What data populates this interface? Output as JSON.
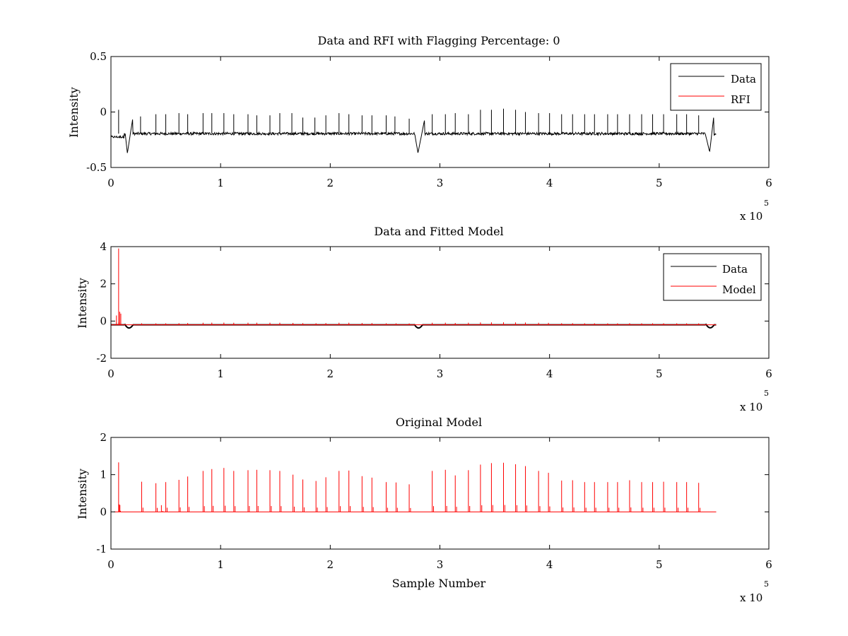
{
  "chart_data": [
    {
      "type": "line",
      "title": "Data and RFI with Flagging Percentage: 0",
      "xlabel": "",
      "ylabel": "Intensity",
      "xlim": [
        0,
        6
      ],
      "ylim": [
        -0.5,
        0.5
      ],
      "xticks": [
        "0",
        "1",
        "2",
        "3",
        "4",
        "5",
        "6"
      ],
      "yticks": [
        "-0.5",
        "0",
        "0.5"
      ],
      "x_multiplier": {
        "base": "x 10",
        "exponent": "5"
      },
      "legend": {
        "position": "top-right",
        "entries": [
          {
            "label": "Data",
            "color": "#000000"
          },
          {
            "label": "RFI",
            "color": "#ff0000"
          }
        ]
      },
      "series": [
        {
          "name": "Data",
          "color": "#000000",
          "x_range": [
            0,
            5.52
          ],
          "baseline": -0.195,
          "noise": 0.012,
          "spikes": [
            {
              "x": 0.07,
              "h": 0.02
            },
            {
              "x": 0.27,
              "h": -0.04
            },
            {
              "x": 0.41,
              "h": -0.02
            },
            {
              "x": 0.5,
              "h": -0.02
            },
            {
              "x": 0.62,
              "h": -0.01
            },
            {
              "x": 0.7,
              "h": -0.02
            },
            {
              "x": 0.84,
              "h": -0.01
            },
            {
              "x": 0.92,
              "h": -0.01
            },
            {
              "x": 1.03,
              "h": -0.01
            },
            {
              "x": 1.12,
              "h": -0.02
            },
            {
              "x": 1.25,
              "h": -0.02
            },
            {
              "x": 1.33,
              "h": -0.03
            },
            {
              "x": 1.45,
              "h": -0.03
            },
            {
              "x": 1.54,
              "h": -0.01
            },
            {
              "x": 1.65,
              "h": -0.01
            },
            {
              "x": 1.75,
              "h": -0.05
            },
            {
              "x": 1.86,
              "h": -0.05
            },
            {
              "x": 1.96,
              "h": -0.03
            },
            {
              "x": 2.08,
              "h": -0.01
            },
            {
              "x": 2.17,
              "h": -0.02
            },
            {
              "x": 2.29,
              "h": -0.03
            },
            {
              "x": 2.38,
              "h": -0.03
            },
            {
              "x": 2.51,
              "h": -0.03
            },
            {
              "x": 2.59,
              "h": -0.04
            },
            {
              "x": 2.72,
              "h": -0.06
            },
            {
              "x": 2.93,
              "h": -0.02
            },
            {
              "x": 3.05,
              "h": -0.02
            },
            {
              "x": 3.14,
              "h": -0.01
            },
            {
              "x": 3.26,
              "h": -0.02
            },
            {
              "x": 3.37,
              "h": 0.02
            },
            {
              "x": 3.47,
              "h": 0.02
            },
            {
              "x": 3.58,
              "h": 0.03
            },
            {
              "x": 3.69,
              "h": 0.02
            },
            {
              "x": 3.78,
              "h": 0.0
            },
            {
              "x": 3.9,
              "h": -0.01
            },
            {
              "x": 4.0,
              "h": -0.01
            },
            {
              "x": 4.11,
              "h": -0.02
            },
            {
              "x": 4.21,
              "h": -0.02
            },
            {
              "x": 4.32,
              "h": -0.02
            },
            {
              "x": 4.41,
              "h": -0.02
            },
            {
              "x": 4.53,
              "h": -0.02
            },
            {
              "x": 4.62,
              "h": -0.02
            },
            {
              "x": 4.73,
              "h": -0.02
            },
            {
              "x": 4.84,
              "h": -0.02
            },
            {
              "x": 4.94,
              "h": -0.02
            },
            {
              "x": 5.04,
              "h": -0.02
            },
            {
              "x": 5.16,
              "h": -0.02
            },
            {
              "x": 5.25,
              "h": -0.02
            },
            {
              "x": 5.36,
              "h": -0.03
            }
          ],
          "dips": [
            {
              "start": 0.13,
              "min": 0.15,
              "end": 0.2,
              "depth": -0.37,
              "rise_to": -0.05
            },
            {
              "start": 2.77,
              "min": 2.8,
              "end": 2.86,
              "depth": -0.37,
              "rise_to": -0.07
            },
            {
              "start": 5.42,
              "min": 5.46,
              "end": 5.5,
              "depth": -0.36,
              "rise_to": -0.02
            }
          ]
        },
        {
          "name": "RFI",
          "color": "#ff0000",
          "values": []
        }
      ]
    },
    {
      "type": "line",
      "title": "Data and Fitted Model",
      "xlabel": "",
      "ylabel": "Intensity",
      "xlim": [
        0,
        6
      ],
      "ylim": [
        -2,
        4
      ],
      "xticks": [
        "0",
        "1",
        "2",
        "3",
        "4",
        "5",
        "6"
      ],
      "yticks": [
        "-2",
        "0",
        "2",
        "4"
      ],
      "x_multiplier": {
        "base": "x 10",
        "exponent": "5"
      },
      "legend": {
        "position": "top-right",
        "entries": [
          {
            "label": "Data",
            "color": "#000000"
          },
          {
            "label": "Model",
            "color": "#ff0000"
          }
        ]
      },
      "series": [
        {
          "name": "Data",
          "color": "#000000",
          "x_range": [
            0,
            5.52
          ],
          "baseline": -0.2,
          "dips": [
            {
              "x": 0.16,
              "depth": -0.37
            },
            {
              "x": 2.8,
              "depth": -0.37
            },
            {
              "x": 5.46,
              "depth": -0.36
            }
          ]
        },
        {
          "name": "Model",
          "color": "#ff0000",
          "x_range": [
            0,
            5.52
          ],
          "baseline": -0.2,
          "peaks": [
            {
              "x": 0.05,
              "h": 0.3
            },
            {
              "x": 0.07,
              "h": 3.9
            },
            {
              "x": 0.08,
              "h": 0.5
            },
            {
              "x": 0.09,
              "h": 0.4
            }
          ]
        }
      ]
    },
    {
      "type": "line",
      "title": "Original Model",
      "xlabel": "Sample Number",
      "ylabel": "Intensity",
      "xlim": [
        0,
        6
      ],
      "ylim": [
        -1,
        2
      ],
      "xticks": [
        "0",
        "1",
        "2",
        "3",
        "4",
        "5",
        "6"
      ],
      "yticks": [
        "-1",
        "0",
        "1",
        "2"
      ],
      "x_multiplier": {
        "base": "x 10",
        "exponent": "5"
      },
      "series": [
        {
          "name": "Model",
          "color": "#ff0000",
          "x_range": [
            0.03,
            5.52
          ],
          "baseline": 0,
          "peaks": [
            {
              "x": 0.07,
              "h": 1.33
            },
            {
              "x": 0.075,
              "h": 0.2
            },
            {
              "x": 0.28,
              "h": 0.81
            },
            {
              "x": 0.41,
              "h": 0.77
            },
            {
              "x": 0.46,
              "h": 0.18
            },
            {
              "x": 0.5,
              "h": 0.8
            },
            {
              "x": 0.62,
              "h": 0.86
            },
            {
              "x": 0.7,
              "h": 0.95
            },
            {
              "x": 0.84,
              "h": 1.1
            },
            {
              "x": 0.92,
              "h": 1.15
            },
            {
              "x": 1.03,
              "h": 1.18
            },
            {
              "x": 1.12,
              "h": 1.1
            },
            {
              "x": 1.25,
              "h": 1.12
            },
            {
              "x": 1.33,
              "h": 1.13
            },
            {
              "x": 1.45,
              "h": 1.12
            },
            {
              "x": 1.54,
              "h": 1.1
            },
            {
              "x": 1.66,
              "h": 1.0
            },
            {
              "x": 1.75,
              "h": 0.87
            },
            {
              "x": 1.87,
              "h": 0.83
            },
            {
              "x": 1.96,
              "h": 0.93
            },
            {
              "x": 2.08,
              "h": 1.1
            },
            {
              "x": 2.17,
              "h": 1.11
            },
            {
              "x": 2.29,
              "h": 0.96
            },
            {
              "x": 2.38,
              "h": 0.92
            },
            {
              "x": 2.51,
              "h": 0.8
            },
            {
              "x": 2.6,
              "h": 0.79
            },
            {
              "x": 2.72,
              "h": 0.74
            },
            {
              "x": 2.93,
              "h": 1.1
            },
            {
              "x": 3.05,
              "h": 1.13
            },
            {
              "x": 3.14,
              "h": 0.98
            },
            {
              "x": 3.26,
              "h": 1.12
            },
            {
              "x": 3.37,
              "h": 1.27
            },
            {
              "x": 3.47,
              "h": 1.31
            },
            {
              "x": 3.58,
              "h": 1.32
            },
            {
              "x": 3.69,
              "h": 1.28
            },
            {
              "x": 3.78,
              "h": 1.23
            },
            {
              "x": 3.9,
              "h": 1.1
            },
            {
              "x": 3.99,
              "h": 1.05
            },
            {
              "x": 4.11,
              "h": 0.84
            },
            {
              "x": 4.21,
              "h": 0.85
            },
            {
              "x": 4.32,
              "h": 0.8
            },
            {
              "x": 4.41,
              "h": 0.8
            },
            {
              "x": 4.53,
              "h": 0.8
            },
            {
              "x": 4.62,
              "h": 0.8
            },
            {
              "x": 4.73,
              "h": 0.85
            },
            {
              "x": 4.84,
              "h": 0.8
            },
            {
              "x": 4.94,
              "h": 0.8
            },
            {
              "x": 5.04,
              "h": 0.81
            },
            {
              "x": 5.16,
              "h": 0.8
            },
            {
              "x": 5.25,
              "h": 0.8
            },
            {
              "x": 5.36,
              "h": 0.78
            }
          ]
        }
      ]
    }
  ]
}
